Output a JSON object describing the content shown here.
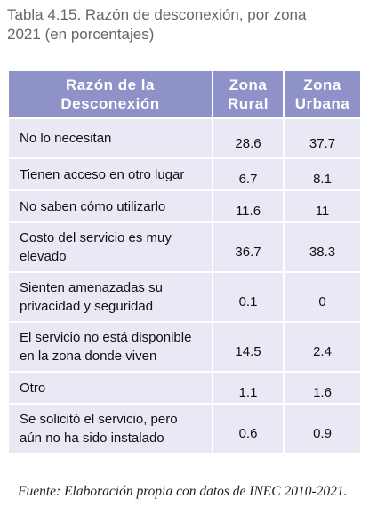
{
  "title": "Tabla 4.15. Razón de desconexión, por zona 2021 (en porcentajes)",
  "table": {
    "header": [
      "Razón de la Desconexión",
      "Zona Rural",
      "Zona Urbana"
    ],
    "rows": [
      [
        "No lo necesitan",
        28.6,
        37.7
      ],
      [
        "Tienen acceso en otro lugar",
        6.7,
        8.1
      ],
      [
        "No saben cómo utilizarlo",
        11.6,
        11
      ],
      [
        "Costo del servicio es muy elevado",
        36.7,
        38.3
      ],
      [
        "Sienten amenazadas su privacidad y seguridad",
        0.1,
        0
      ],
      [
        "El servicio no está disponible en la zona donde viven",
        14.5,
        2.4
      ],
      [
        "Otro",
        1.1,
        1.6
      ],
      [
        "Se solicitó el servicio, pero aún no ha sido instalado",
        0.6,
        0.9
      ]
    ]
  },
  "footer": "Fuente: Elaboración propia con datos de INEC 2010-2021."
}
